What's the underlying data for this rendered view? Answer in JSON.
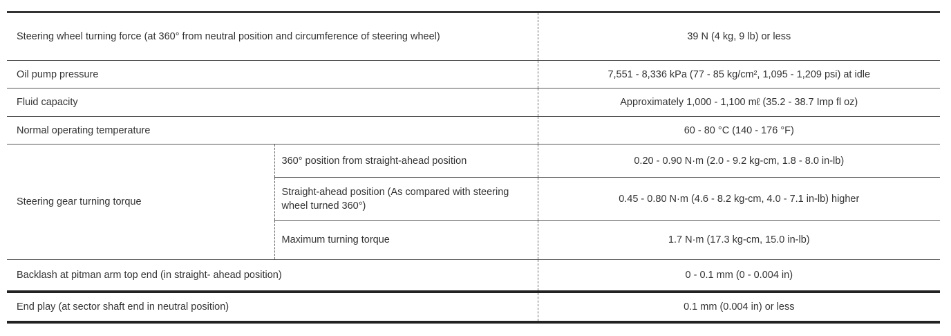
{
  "rows": [
    {
      "item": "Steering wheel turning force (at 360° from neutral position and circumference of steering wheel)",
      "value": "39 N (4 kg, 9 lb) or less"
    },
    {
      "item": "Oil pump pressure",
      "value": "7,551 - 8,336 kPa (77 - 85 kg/cm², 1,095 - 1,209 psi) at idle"
    },
    {
      "item": "Fluid capacity",
      "value": "Approximately 1,000 - 1,100 mℓ (35.2 - 38.7 Imp fl oz)"
    },
    {
      "item": "Normal operating temperature",
      "value": "60 - 80 °C (140 - 176 °F)"
    },
    {
      "item": "Steering gear turning torque",
      "subrows": [
        {
          "condition": "360° position from straight-ahead position",
          "value": "0.20 - 0.90 N·m (2.0 - 9.2 kg-cm, 1.8 - 8.0 in-lb)"
        },
        {
          "condition": "Straight-ahead position (As compared with steering wheel turned 360°)",
          "value": "0.45 - 0.80 N·m (4.6 - 8.2 kg-cm, 4.0 - 7.1 in-lb) higher"
        },
        {
          "condition": "Maximum turning torque",
          "value": "1.7 N·m (17.3 kg-cm, 15.0 in-lb)"
        }
      ]
    },
    {
      "item": "Backlash at pitman arm top end (in straight- ahead position)",
      "value": "0 - 0.1 mm (0 - 0.004 in)"
    },
    {
      "item": "End play (at sector shaft end in neutral position)",
      "value": "0.1 mm (0.004 in) or less"
    }
  ]
}
